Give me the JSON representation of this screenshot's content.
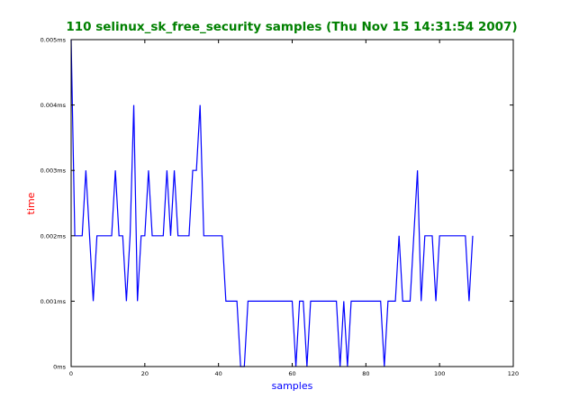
{
  "colors": {
    "title": "#008000",
    "xlabel": "#0000ff",
    "ylabel": "#ff0000",
    "line": "#0000ff",
    "frame": "#000000"
  },
  "chart_data": {
    "type": "line",
    "title": "110 selinux_sk_free_security samples (Thu Nov 15 14:31:54 2007)",
    "xlabel": "samples",
    "ylabel": "time",
    "xlim": [
      0,
      120
    ],
    "ylim": [
      0,
      0.005
    ],
    "x_ticks": [
      0,
      20,
      40,
      60,
      80,
      100,
      120
    ],
    "x_tick_labels": [
      "0",
      "20",
      "40",
      "60",
      "80",
      "100",
      "120"
    ],
    "y_ticks": [
      0,
      0.001,
      0.002,
      0.003,
      0.004,
      0.005
    ],
    "y_tick_labels": [
      "0ms",
      "0.001ms",
      "0.002ms",
      "0.003ms",
      "0.004ms",
      "0.005ms"
    ],
    "grid": false,
    "series": [
      {
        "values": [
          0.005,
          0.002,
          0.002,
          0.002,
          0.003,
          0.002,
          0.001,
          0.002,
          0.002,
          0.002,
          0.002,
          0.002,
          0.003,
          0.002,
          0.002,
          0.001,
          0.002,
          0.004,
          0.001,
          0.002,
          0.002,
          0.003,
          0.002,
          0.002,
          0.002,
          0.002,
          0.003,
          0.002,
          0.003,
          0.002,
          0.002,
          0.002,
          0.002,
          0.003,
          0.003,
          0.004,
          0.002,
          0.002,
          0.002,
          0.002,
          0.002,
          0.002,
          0.001,
          0.001,
          0.001,
          0.001,
          0.0,
          0.0,
          0.001,
          0.001,
          0.001,
          0.001,
          0.001,
          0.001,
          0.001,
          0.001,
          0.001,
          0.001,
          0.001,
          0.001,
          0.001,
          0.0,
          0.001,
          0.001,
          0.0,
          0.001,
          0.001,
          0.001,
          0.001,
          0.001,
          0.001,
          0.001,
          0.001,
          0.0,
          0.001,
          0.0,
          0.001,
          0.001,
          0.001,
          0.001,
          0.001,
          0.001,
          0.001,
          0.001,
          0.001,
          0.0,
          0.001,
          0.001,
          0.001,
          0.002,
          0.001,
          0.001,
          0.001,
          0.002,
          0.003,
          0.001,
          0.002,
          0.002,
          0.002,
          0.001,
          0.002,
          0.002,
          0.002,
          0.002,
          0.002,
          0.002,
          0.002,
          0.002,
          0.001,
          0.002
        ]
      }
    ]
  }
}
